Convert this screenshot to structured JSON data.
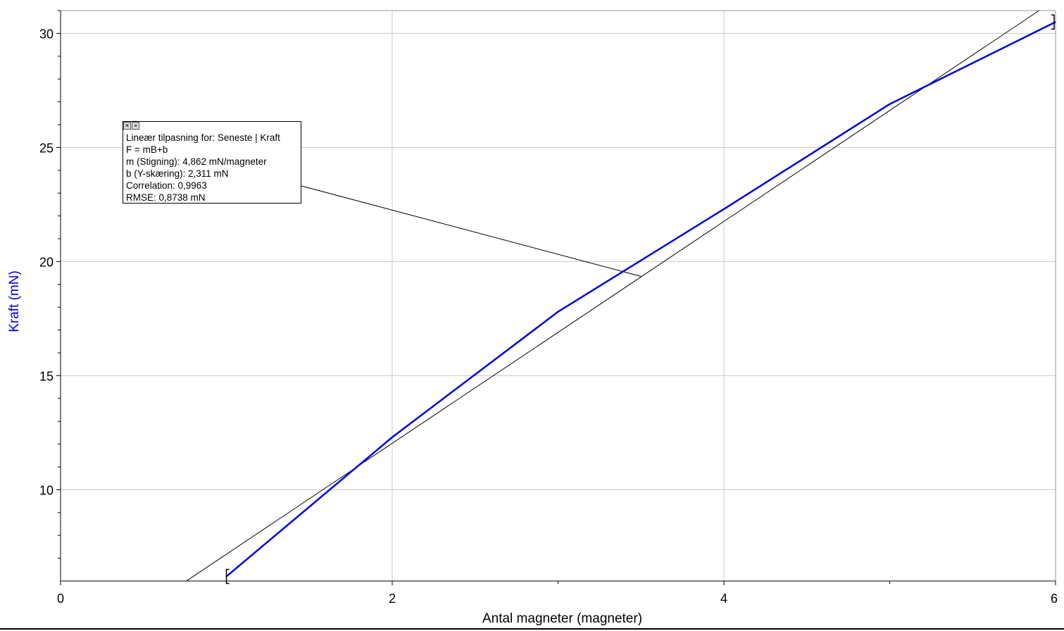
{
  "chart_data": {
    "type": "line",
    "xlabel": "Antal magneter (magneter)",
    "ylabel": "Kraft (mN)",
    "xlim": [
      0,
      6
    ],
    "ylim": [
      6,
      31
    ],
    "x_ticks": [
      0,
      2,
      4,
      6
    ],
    "y_ticks": [
      10,
      15,
      20,
      25,
      30
    ],
    "grid": true,
    "series": [
      {
        "name": "Kraft",
        "color": "#0000dd",
        "x": [
          1,
          2,
          3,
          4,
          5,
          6
        ],
        "y": [
          6.2,
          12.3,
          17.8,
          22.3,
          26.9,
          30.5
        ]
      }
    ],
    "fit": {
      "slope": 4.862,
      "intercept": 2.311,
      "x_range": [
        0.76,
        6
      ]
    },
    "fit_annotation": {
      "lines": [
        "Lineær tilpasning for: Seneste | Kraft",
        "F = mB+b",
        "m (Stigning): 4,862 mN/magneter",
        "b (Y-skæring): 2,311 mN",
        "Correlation: 0,9963",
        "RMSE: 0,8738 mN"
      ],
      "anchor_x": 3.5,
      "anchor_y": 19.35
    }
  }
}
